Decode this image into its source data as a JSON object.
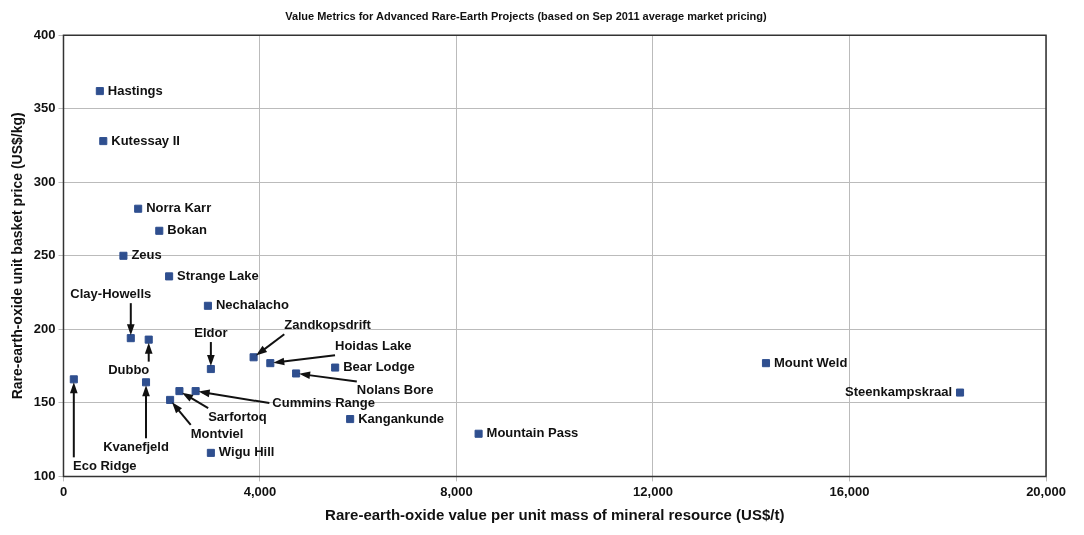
{
  "chart_data": {
    "type": "scatter",
    "title": "Value Metrics for Advanced Rare-Earth Projects (based on Sep 2011 average market pricing)",
    "xlabel": "Rare-earth-oxide value per unit mass of mineral resource (US$/t)",
    "ylabel": "Rare-earth-oxide unit basket price (US$/kg)",
    "x": [
      740,
      810,
      1520,
      1950,
      1220,
      2150,
      2940,
      1370,
      1735,
      3000,
      210,
      1680,
      2170,
      2360,
      2690,
      3000,
      3870,
      4210,
      4735,
      5530,
      5835,
      8450,
      14300,
      18250
    ],
    "series": [
      {
        "color": "#2f4f8f",
        "values": [
          362,
          328,
          282,
          267,
          250,
          236,
          216,
          194,
          193,
          173,
          166,
          164,
          152,
          158,
          158,
          116,
          181,
          177,
          170,
          174,
          139,
          129,
          177,
          157
        ]
      }
    ],
    "annotations": [
      {
        "text": "Hastings",
        "x": 740,
        "y": 362
      },
      {
        "text": "Kutessay II",
        "x": 810,
        "y": 328
      },
      {
        "text": "Norra Karr",
        "x": 1520,
        "y": 282
      },
      {
        "text": "Bokan",
        "x": 1950,
        "y": 267
      },
      {
        "text": "Zeus",
        "x": 1220,
        "y": 250
      },
      {
        "text": "Strange Lake",
        "x": 2150,
        "y": 236
      },
      {
        "text": "Nechalacho",
        "x": 2940,
        "y": 216
      },
      {
        "text": "Clay-Howells",
        "x": 1370,
        "y": 194
      },
      {
        "text": "Dubbo",
        "x": 1735,
        "y": 193
      },
      {
        "text": "Eldor",
        "x": 3000,
        "y": 173
      },
      {
        "text": "Eco Ridge",
        "x": 210,
        "y": 166
      },
      {
        "text": "Kvanefjeld",
        "x": 1680,
        "y": 164
      },
      {
        "text": "Montviel",
        "x": 2170,
        "y": 152
      },
      {
        "text": "Sarfortoq",
        "x": 2360,
        "y": 158
      },
      {
        "text": "Cummins Range",
        "x": 2690,
        "y": 158
      },
      {
        "text": "Wigu Hill",
        "x": 3000,
        "y": 116
      },
      {
        "text": "Zandkopsdrift",
        "x": 3870,
        "y": 181
      },
      {
        "text": "Hoidas Lake",
        "x": 4210,
        "y": 177
      },
      {
        "text": "Nolans Bore",
        "x": 4735,
        "y": 170
      },
      {
        "text": "Bear Lodge",
        "x": 5530,
        "y": 174
      },
      {
        "text": "Kangankunde",
        "x": 5835,
        "y": 139
      },
      {
        "text": "Mountain Pass",
        "x": 8450,
        "y": 129
      },
      {
        "text": "Mount Weld",
        "x": 14300,
        "y": 177
      },
      {
        "text": "Steenkampskraal",
        "x": 18250,
        "y": 157
      }
    ],
    "xlim": [
      0,
      20000
    ],
    "xticks": [
      0,
      {
        "value": 4000,
        "label": "4,000"
      },
      {
        "value": 8000,
        "label": "8,000"
      },
      {
        "value": 12000,
        "label": "12,000"
      },
      {
        "value": 16000,
        "label": "16,000"
      },
      {
        "value": 20000,
        "label": "20,000"
      }
    ],
    "ylim": [
      100,
      400
    ],
    "yticks": [
      100,
      150,
      200,
      250,
      300,
      350,
      400
    ],
    "grid": true,
    "marker": "square",
    "legend": false
  }
}
